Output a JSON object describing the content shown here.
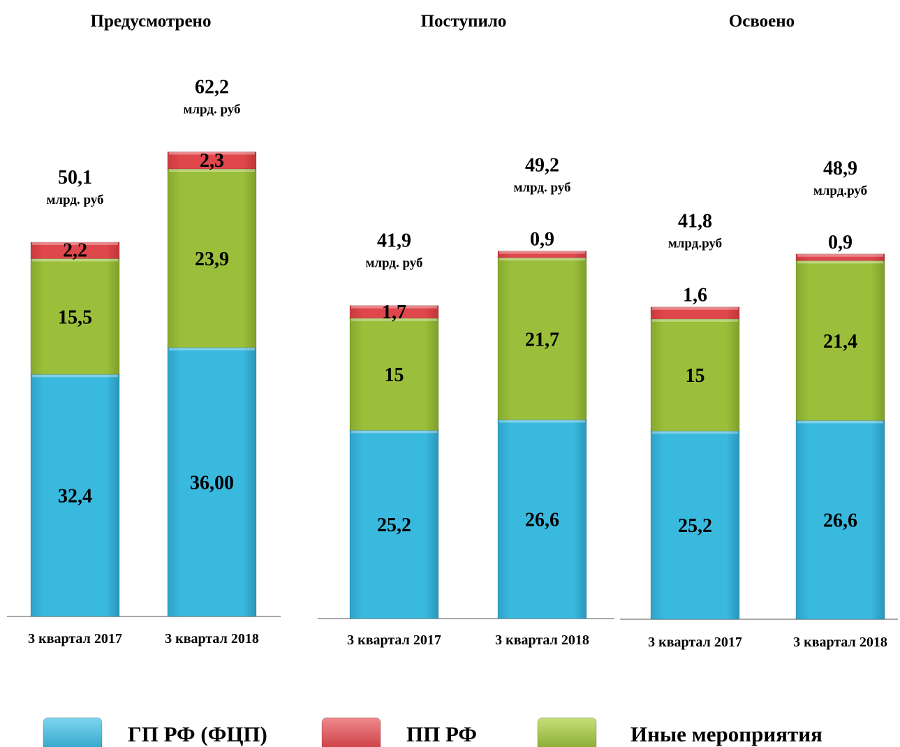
{
  "colors": {
    "gp": "#3ab9df",
    "pp": "#e0474c",
    "other": "#9bbf3a"
  },
  "legend": [
    {
      "key": "gp",
      "label": "ГП РФ (ФЦП)"
    },
    {
      "key": "pp",
      "label": "ПП РФ"
    },
    {
      "key": "other",
      "label": "Иные мероприятия"
    }
  ],
  "chart_data": [
    {
      "type": "bar",
      "stacked": true,
      "title": "Предусмотрено",
      "categories": [
        "3 квартал 2017",
        "3 квартал 2018"
      ],
      "series": [
        {
          "key": "gp",
          "name": "ГП РФ (ФЦП)",
          "values": [
            32.4,
            36.0
          ],
          "labels": [
            "32,4",
            "36,00"
          ]
        },
        {
          "key": "other",
          "name": "Иные мероприятия",
          "values": [
            15.5,
            23.9
          ],
          "labels": [
            "15,5",
            "23,9"
          ]
        },
        {
          "key": "pp",
          "name": "ПП РФ",
          "values": [
            2.2,
            2.3
          ],
          "labels": [
            "2,2",
            "2,3"
          ]
        }
      ],
      "totals": [
        {
          "value": 50.1,
          "label": "50,1",
          "unit": "млрд. руб"
        },
        {
          "value": 62.2,
          "label": "62,2",
          "unit": "млрд. руб"
        }
      ]
    },
    {
      "type": "bar",
      "stacked": true,
      "title": "Поступило",
      "categories": [
        "3 квартал 2017",
        "3 квартал 2018"
      ],
      "series": [
        {
          "key": "gp",
          "name": "ГП РФ (ФЦП)",
          "values": [
            25.2,
            26.6
          ],
          "labels": [
            "25,2",
            "26,6"
          ]
        },
        {
          "key": "other",
          "name": "Иные мероприятия",
          "values": [
            15,
            21.7
          ],
          "labels": [
            "15",
            "21,7"
          ]
        },
        {
          "key": "pp",
          "name": "ПП РФ",
          "values": [
            1.7,
            0.9
          ],
          "labels": [
            "1,7",
            "0,9"
          ]
        }
      ],
      "totals": [
        {
          "value": 41.9,
          "label": "41,9",
          "unit": "млрд. руб"
        },
        {
          "value": 49.2,
          "label": "49,2",
          "unit": "млрд. руб"
        }
      ]
    },
    {
      "type": "bar",
      "stacked": true,
      "title": "Освоено",
      "categories": [
        "3 квартал 2017",
        "3 квартал 2018"
      ],
      "series": [
        {
          "key": "gp",
          "name": "ГП РФ (ФЦП)",
          "values": [
            25.2,
            26.6
          ],
          "labels": [
            "25,2",
            "26,6"
          ]
        },
        {
          "key": "other",
          "name": "Иные мероприятия",
          "values": [
            15,
            21.4
          ],
          "labels": [
            "15",
            "21,4"
          ]
        },
        {
          "key": "pp",
          "name": "ПП РФ",
          "values": [
            1.6,
            0.9
          ],
          "labels": [
            "1,6",
            "0,9"
          ]
        }
      ],
      "totals": [
        {
          "value": 41.8,
          "label": "41,8",
          "unit": "млрд.руб"
        },
        {
          "value": 48.9,
          "label": "48,9",
          "unit": "млрд.руб"
        }
      ]
    }
  ]
}
